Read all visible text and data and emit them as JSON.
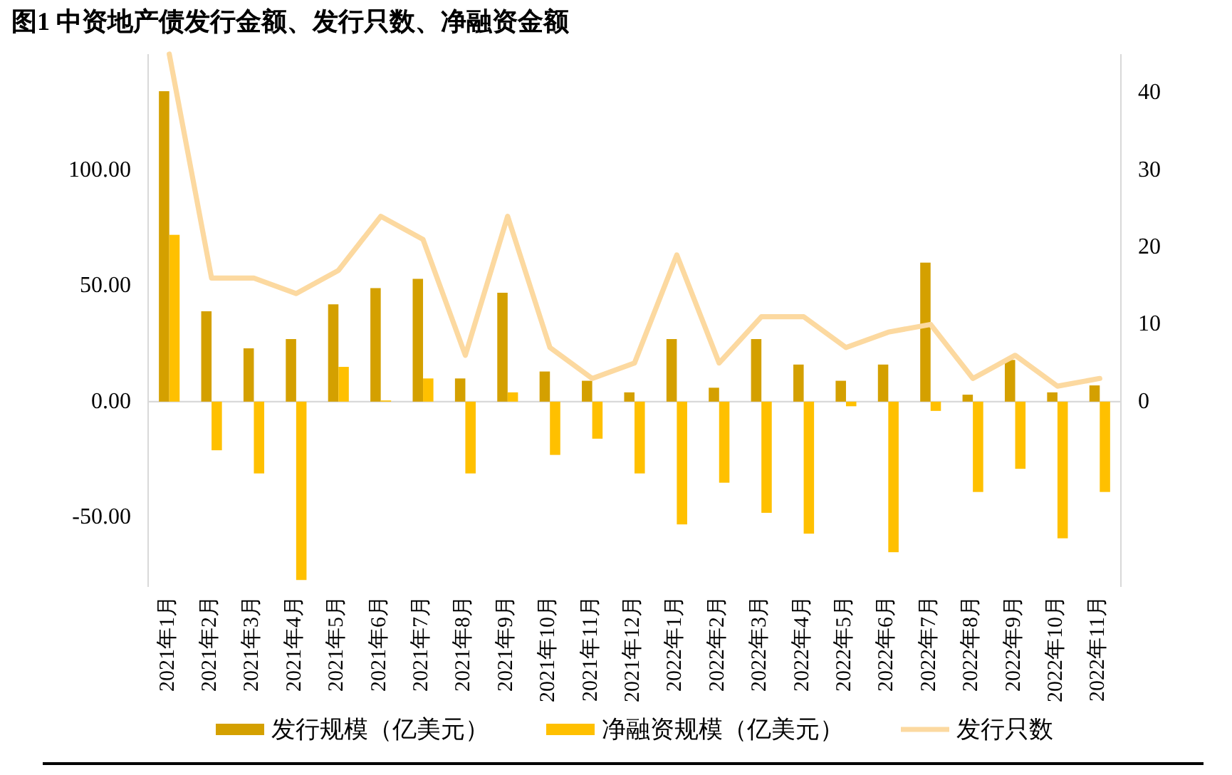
{
  "chart_data": {
    "type": "bar",
    "title": "图1 中资地产债发行金额、发行只数、净融资金额",
    "categories": [
      "2021年1月",
      "2021年2月",
      "2021年3月",
      "2021年4月",
      "2021年5月",
      "2021年6月",
      "2021年7月",
      "2021年8月",
      "2021年9月",
      "2021年10月",
      "2021年11月",
      "2021年12月",
      "2022年1月",
      "2022年2月",
      "2022年3月",
      "2022年4月",
      "2022年5月",
      "2022年6月",
      "2022年7月",
      "2022年8月",
      "2022年9月",
      "2022年10月",
      "2022年11月"
    ],
    "series": [
      {
        "name": "发行规模（亿美元）",
        "color": "#d4a000",
        "values": [
          134,
          39,
          23,
          27,
          42,
          49,
          53,
          10,
          47,
          13,
          9,
          4,
          27,
          6,
          27,
          16,
          9,
          16,
          60,
          3,
          18,
          4,
          7
        ]
      },
      {
        "name": "净融资规模（亿美元）",
        "color": "#ffc000",
        "values": [
          72,
          -21,
          -31,
          -77,
          15,
          0.5,
          10,
          -31,
          4,
          -23,
          -16,
          -31,
          -53,
          -35,
          -48,
          -57,
          -2,
          -65,
          -4,
          -39,
          -29,
          -59,
          -39
        ]
      },
      {
        "name": "发行只数",
        "type": "line",
        "axis": "y2",
        "color": "#fcd9a0",
        "values": [
          45,
          16,
          16,
          14,
          17,
          24,
          21,
          6,
          24,
          7,
          3,
          5,
          19,
          5,
          11,
          11,
          7,
          9,
          10,
          3,
          6,
          2,
          3
        ]
      }
    ],
    "ylim": [
      -80,
      150
    ],
    "yticks": [
      {
        "value": -50,
        "label": "-50.00"
      },
      {
        "value": 0,
        "label": "0.00"
      },
      {
        "value": 50,
        "label": "50.00"
      },
      {
        "value": 100,
        "label": "100.00"
      }
    ],
    "y2lim": [
      -24,
      45
    ],
    "y2ticks": [
      0,
      10,
      20,
      30,
      40
    ],
    "legend": "bottom"
  }
}
